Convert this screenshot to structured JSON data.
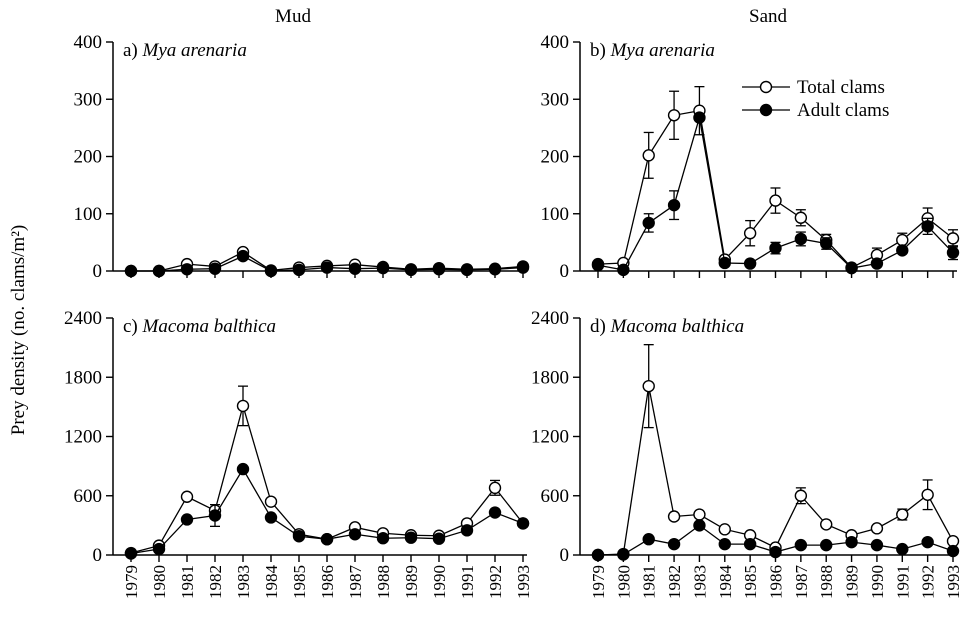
{
  "figure": {
    "ylabel": "Prey density (no. clams/m²)",
    "col_titles": [
      "Mud",
      "Sand"
    ],
    "legend": {
      "placement": "top-right of panel b",
      "total_label": "Total clams",
      "adult_label": "Adult clams"
    },
    "years": [
      "1979",
      "1980",
      "1981",
      "1982",
      "1983",
      "1984",
      "1985",
      "1986",
      "1987",
      "1988",
      "1989",
      "1990",
      "1991",
      "1992",
      "1993"
    ]
  },
  "chart_data": [
    {
      "type": "line",
      "panel": "a",
      "title": "a) Mya arenaria",
      "column": "Mud",
      "categories": [
        "1979",
        "1980",
        "1981",
        "1982",
        "1983",
        "1984",
        "1985",
        "1986",
        "1987",
        "1988",
        "1989",
        "1990",
        "1991",
        "1992",
        "1993"
      ],
      "ylim": [
        0,
        400
      ],
      "yticks": [
        0,
        100,
        200,
        300,
        400
      ],
      "series": [
        {
          "name": "Total clams",
          "marker": "open-circle",
          "values": [
            0,
            0,
            12,
            8,
            33,
            1,
            6,
            9,
            11,
            7,
            3,
            5,
            3,
            4,
            8
          ],
          "errors": [
            0,
            0,
            0,
            0,
            6,
            0,
            0,
            0,
            0,
            0,
            0,
            0,
            0,
            0,
            0
          ]
        },
        {
          "name": "Adult clams",
          "marker": "filled-circle",
          "values": [
            0,
            0,
            3,
            4,
            26,
            0,
            2,
            6,
            4,
            5,
            2,
            3,
            2,
            3,
            6
          ],
          "errors": [
            0,
            0,
            0,
            0,
            0,
            0,
            0,
            0,
            0,
            0,
            0,
            0,
            0,
            0,
            0
          ]
        }
      ]
    },
    {
      "type": "line",
      "panel": "b",
      "title": "b) Mya arenaria",
      "column": "Sand",
      "categories": [
        "1979",
        "1980",
        "1981",
        "1982",
        "1983",
        "1984",
        "1985",
        "1986",
        "1987",
        "1988",
        "1989",
        "1990",
        "1991",
        "1992",
        "1993"
      ],
      "ylim": [
        0,
        400
      ],
      "yticks": [
        0,
        100,
        200,
        300,
        400
      ],
      "series": [
        {
          "name": "Total clams",
          "marker": "open-circle",
          "values": [
            12,
            14,
            202,
            272,
            280,
            20,
            66,
            123,
            93,
            54,
            6,
            28,
            54,
            92,
            57
          ],
          "errors": [
            0,
            0,
            40,
            42,
            42,
            0,
            22,
            22,
            14,
            10,
            0,
            12,
            12,
            18,
            15
          ]
        },
        {
          "name": "Adult clams",
          "marker": "filled-circle",
          "values": [
            10,
            2,
            84,
            115,
            268,
            14,
            13,
            40,
            56,
            48,
            5,
            13,
            36,
            78,
            32
          ],
          "errors": [
            0,
            0,
            16,
            25,
            0,
            0,
            0,
            10,
            12,
            10,
            0,
            0,
            0,
            14,
            12
          ]
        }
      ]
    },
    {
      "type": "line",
      "panel": "c",
      "title": "c) Macoma balthica",
      "column": "Mud",
      "categories": [
        "1979",
        "1980",
        "1981",
        "1982",
        "1983",
        "1984",
        "1985",
        "1986",
        "1987",
        "1988",
        "1989",
        "1990",
        "1991",
        "1992",
        "1993"
      ],
      "ylim": [
        0,
        2400
      ],
      "yticks": [
        0,
        600,
        1200,
        1800,
        2400
      ],
      "series": [
        {
          "name": "Total clams",
          "marker": "open-circle",
          "values": [
            20,
            95,
            590,
            450,
            1510,
            540,
            210,
            160,
            280,
            220,
            200,
            195,
            320,
            680,
            320
          ],
          "errors": [
            0,
            0,
            0,
            0,
            200,
            0,
            0,
            0,
            30,
            0,
            0,
            0,
            0,
            75,
            0
          ]
        },
        {
          "name": "Adult clams",
          "marker": "filled-circle",
          "values": [
            15,
            60,
            360,
            400,
            870,
            380,
            190,
            160,
            210,
            170,
            175,
            165,
            250,
            430,
            320
          ],
          "errors": [
            0,
            0,
            0,
            110,
            0,
            0,
            0,
            0,
            0,
            0,
            0,
            0,
            0,
            0,
            0
          ]
        }
      ]
    },
    {
      "type": "line",
      "panel": "d",
      "title": "d) Macoma balthica",
      "column": "Sand",
      "categories": [
        "1979",
        "1980",
        "1981",
        "1982",
        "1983",
        "1984",
        "1985",
        "1986",
        "1987",
        "1988",
        "1989",
        "1990",
        "1991",
        "1992",
        "1993"
      ],
      "ylim": [
        0,
        2400
      ],
      "yticks": [
        0,
        600,
        1200,
        1800,
        2400
      ],
      "series": [
        {
          "name": "Total clams",
          "marker": "open-circle",
          "values": [
            0,
            10,
            1710,
            390,
            410,
            260,
            200,
            75,
            600,
            310,
            200,
            270,
            410,
            610,
            140
          ],
          "errors": [
            0,
            0,
            420,
            0,
            0,
            0,
            0,
            0,
            80,
            0,
            0,
            0,
            55,
            150,
            0
          ]
        },
        {
          "name": "Adult clams",
          "marker": "filled-circle",
          "values": [
            0,
            5,
            160,
            110,
            300,
            110,
            110,
            30,
            100,
            100,
            130,
            100,
            60,
            130,
            40
          ],
          "errors": [
            0,
            0,
            0,
            0,
            0,
            0,
            0,
            0,
            0,
            0,
            0,
            0,
            0,
            0,
            0
          ]
        }
      ]
    }
  ]
}
